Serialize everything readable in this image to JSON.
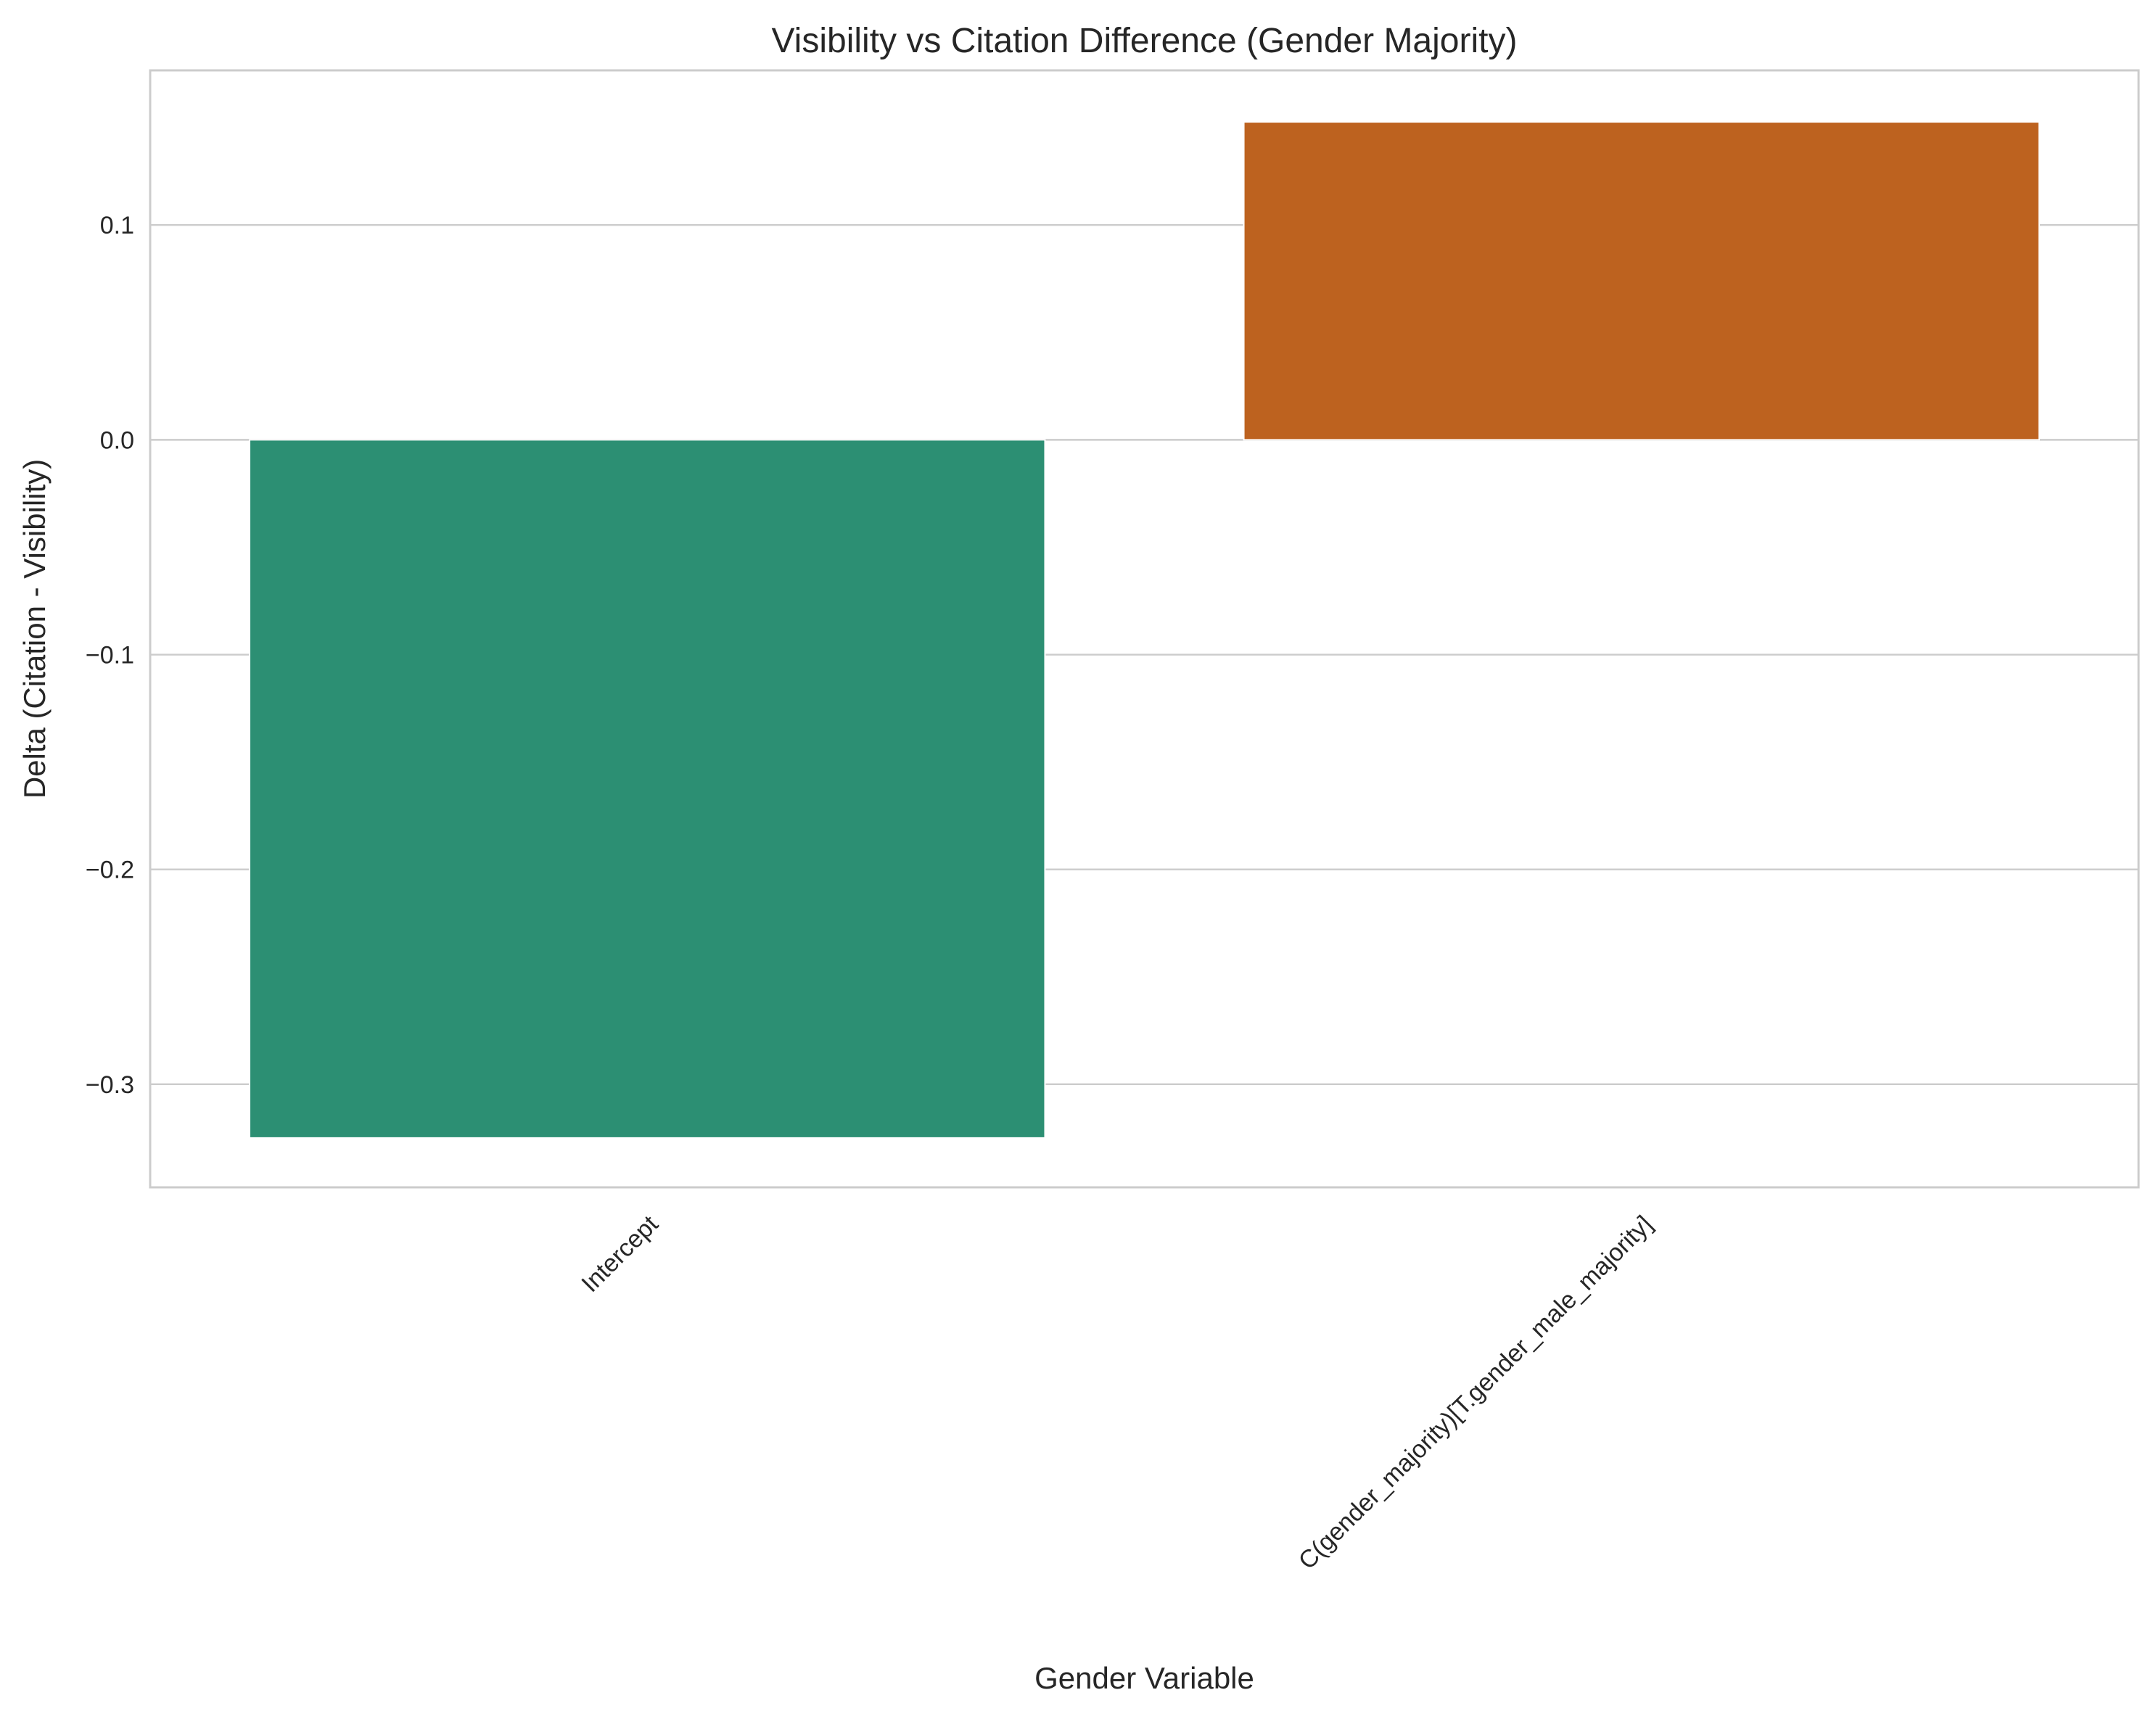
{
  "chart_data": {
    "type": "bar",
    "title": "Visibility vs Citation Difference (Gender Majority)",
    "xlabel": "Gender Variable",
    "ylabel": "Delta (Citation - Visibility)",
    "categories": [
      "Intercept",
      "C(gender_majority)[T.gender_male_majority]"
    ],
    "values": [
      -0.325,
      0.148
    ],
    "colors": [
      "#2c8f73",
      "#bd621f"
    ],
    "ylim": [
      -0.348,
      0.172
    ],
    "yticks": [
      0.1,
      0.0,
      -0.1,
      -0.2,
      -0.3
    ],
    "ytick_labels": [
      "0.1",
      "0.0",
      "−0.1",
      "−0.2",
      "−0.3"
    ],
    "grid": true,
    "legend": "none"
  }
}
